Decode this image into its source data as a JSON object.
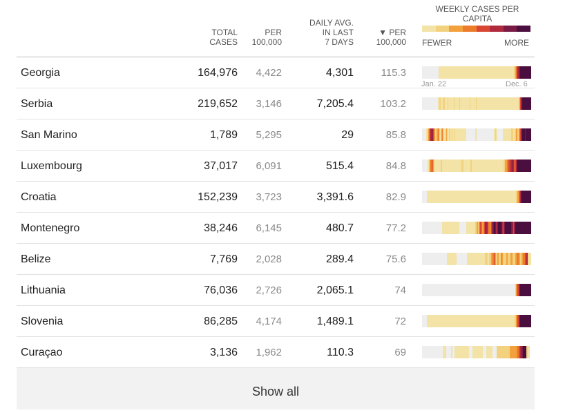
{
  "headers": {
    "total": [
      "TOTAL",
      "CASES"
    ],
    "per": [
      "PER",
      "100,000"
    ],
    "daily": [
      "DAILY AVG.",
      "IN LAST",
      "7 DAYS"
    ],
    "perd": [
      "▼ PER",
      "100,000"
    ],
    "weekly": [
      "WEEKLY CASES PER",
      "CAPITA"
    ],
    "fewer": "FEWER",
    "more": "MORE"
  },
  "legend_colors": [
    "#f3e3a6",
    "#f3d27f",
    "#f2a13d",
    "#ec7c2a",
    "#d94734",
    "#b02a3e",
    "#7a1a45",
    "#4a0f3f"
  ],
  "dates": {
    "start": "Jan. 22",
    "end": "Dec. 6"
  },
  "rows": [
    {
      "country": "Georgia",
      "total": "164,976",
      "per": "4,422",
      "daily": "4,301",
      "perd": "115.3",
      "levels": [
        0,
        0,
        0,
        0,
        0,
        0,
        0,
        0,
        0,
        0,
        0,
        0,
        0,
        0,
        0,
        0,
        0,
        0,
        0,
        0,
        0,
        1,
        1,
        1,
        1,
        1,
        1,
        1,
        1,
        1,
        1,
        1,
        1,
        1,
        1,
        1,
        1,
        1,
        1,
        1,
        1,
        1,
        1,
        1,
        1,
        1,
        1,
        1,
        1,
        1,
        1,
        1,
        1,
        1,
        1,
        1,
        1,
        1,
        1,
        1,
        1,
        1,
        1,
        1,
        1,
        1,
        1,
        1,
        1,
        1,
        1,
        1,
        1,
        1,
        1,
        1,
        1,
        1,
        1,
        1,
        1,
        1,
        1,
        1,
        1,
        1,
        1,
        1,
        1,
        1,
        1,
        1,
        1,
        1,
        1,
        1,
        1,
        1,
        1,
        1,
        1,
        1,
        1,
        1,
        1,
        1,
        1,
        1,
        1,
        1,
        1,
        1,
        1,
        1,
        1,
        1,
        1,
        1,
        2,
        2,
        3,
        4,
        5,
        6,
        7,
        7,
        8,
        8,
        8,
        8,
        8,
        8,
        8,
        8,
        8,
        8,
        8,
        8,
        8,
        8
      ]
    },
    {
      "country": "Serbia",
      "total": "219,652",
      "per": "3,146",
      "daily": "7,205.4",
      "perd": "103.2",
      "levels": [
        0,
        0,
        0,
        0,
        0,
        0,
        0,
        0,
        0,
        0,
        0,
        0,
        0,
        0,
        0,
        0,
        0,
        0,
        0,
        0,
        1,
        1,
        2,
        2,
        1,
        1,
        1,
        2,
        2,
        1,
        1,
        1,
        1,
        2,
        1,
        1,
        1,
        1,
        1,
        1,
        1,
        2,
        1,
        1,
        1,
        1,
        1,
        1,
        2,
        1,
        1,
        1,
        1,
        1,
        1,
        1,
        1,
        1,
        1,
        1,
        1,
        2,
        1,
        1,
        1,
        1,
        1,
        1,
        1,
        2,
        1,
        1,
        1,
        1,
        1,
        1,
        1,
        1,
        1,
        1,
        1,
        1,
        1,
        1,
        1,
        1,
        1,
        1,
        1,
        1,
        1,
        1,
        1,
        1,
        1,
        1,
        1,
        1,
        1,
        1,
        1,
        1,
        1,
        1,
        1,
        1,
        1,
        1,
        1,
        1,
        1,
        1,
        1,
        1,
        1,
        1,
        1,
        1,
        1,
        1,
        1,
        1,
        1,
        1,
        2,
        3,
        5,
        6,
        7,
        8,
        8,
        8,
        8,
        8,
        8,
        8,
        8,
        8,
        8,
        8
      ]
    },
    {
      "country": "San Marino",
      "total": "1,789",
      "per": "5,295",
      "daily": "29",
      "perd": "85.8",
      "levels": [
        0,
        0,
        0,
        0,
        0,
        1,
        1,
        2,
        3,
        4,
        5,
        6,
        7,
        6,
        5,
        4,
        3,
        2,
        2,
        3,
        4,
        3,
        2,
        1,
        2,
        3,
        4,
        2,
        1,
        1,
        2,
        3,
        2,
        1,
        1,
        2,
        1,
        1,
        2,
        1,
        1,
        1,
        2,
        1,
        1,
        1,
        1,
        1,
        1,
        1,
        1,
        1,
        1,
        1,
        1,
        1,
        1,
        0,
        0,
        0,
        0,
        0,
        0,
        0,
        0,
        0,
        0,
        0,
        1,
        1,
        0,
        0,
        0,
        0,
        0,
        0,
        0,
        0,
        0,
        0,
        0,
        0,
        0,
        0,
        0,
        0,
        0,
        0,
        0,
        0,
        0,
        0,
        1,
        1,
        2,
        1,
        1,
        0,
        0,
        0,
        0,
        0,
        0,
        0,
        1,
        1,
        1,
        1,
        1,
        1,
        1,
        1,
        1,
        1,
        1,
        2,
        2,
        1,
        1,
        2,
        2,
        3,
        3,
        2,
        3,
        4,
        5,
        6,
        7,
        8,
        8,
        8,
        7,
        8,
        8,
        8,
        8,
        8,
        8,
        8
      ]
    },
    {
      "country": "Luxembourg",
      "total": "37,017",
      "per": "6,091",
      "daily": "515.4",
      "perd": "84.8",
      "levels": [
        0,
        0,
        0,
        0,
        0,
        0,
        0,
        1,
        1,
        2,
        3,
        4,
        5,
        4,
        3,
        2,
        1,
        1,
        1,
        1,
        1,
        1,
        1,
        1,
        2,
        2,
        1,
        1,
        1,
        1,
        1,
        1,
        1,
        1,
        1,
        1,
        1,
        1,
        1,
        1,
        1,
        1,
        1,
        1,
        1,
        1,
        1,
        1,
        1,
        1,
        1,
        2,
        2,
        1,
        1,
        1,
        1,
        1,
        1,
        1,
        1,
        1,
        2,
        2,
        1,
        1,
        1,
        1,
        1,
        1,
        1,
        1,
        1,
        1,
        1,
        1,
        1,
        1,
        1,
        1,
        1,
        1,
        1,
        1,
        1,
        1,
        1,
        1,
        1,
        1,
        1,
        1,
        1,
        1,
        1,
        1,
        1,
        1,
        1,
        1,
        1,
        1,
        1,
        1,
        1,
        2,
        2,
        3,
        3,
        4,
        4,
        5,
        5,
        5,
        6,
        6,
        7,
        6,
        5,
        4,
        5,
        6,
        7,
        8,
        8,
        8,
        8,
        8,
        8,
        8,
        8,
        8,
        8,
        8,
        8,
        8,
        8,
        8,
        8,
        8
      ]
    },
    {
      "country": "Croatia",
      "total": "152,239",
      "per": "3,723",
      "daily": "3,391.6",
      "perd": "82.9",
      "levels": [
        0,
        0,
        0,
        0,
        0,
        0,
        1,
        1,
        1,
        1,
        1,
        1,
        1,
        1,
        1,
        1,
        1,
        1,
        1,
        1,
        1,
        1,
        1,
        1,
        1,
        1,
        1,
        1,
        1,
        1,
        1,
        1,
        1,
        1,
        1,
        1,
        1,
        1,
        1,
        1,
        1,
        1,
        1,
        1,
        1,
        1,
        1,
        1,
        1,
        1,
        1,
        1,
        1,
        1,
        1,
        1,
        1,
        1,
        1,
        1,
        1,
        1,
        1,
        1,
        1,
        1,
        1,
        1,
        1,
        1,
        1,
        1,
        1,
        1,
        1,
        1,
        1,
        1,
        1,
        1,
        1,
        1,
        1,
        1,
        1,
        1,
        1,
        1,
        1,
        1,
        1,
        1,
        1,
        1,
        1,
        1,
        1,
        1,
        1,
        1,
        1,
        1,
        1,
        1,
        1,
        1,
        1,
        1,
        1,
        1,
        1,
        1,
        1,
        1,
        1,
        1,
        1,
        1,
        1,
        1,
        1,
        2,
        2,
        3,
        4,
        5,
        6,
        7,
        8,
        8,
        8,
        8,
        8,
        8,
        8,
        8,
        8,
        8,
        8,
        8
      ]
    },
    {
      "country": "Montenegro",
      "total": "38,246",
      "per": "6,145",
      "daily": "480.7",
      "perd": "77.2",
      "levels": [
        0,
        0,
        0,
        0,
        0,
        0,
        0,
        0,
        0,
        0,
        0,
        0,
        0,
        0,
        0,
        0,
        0,
        0,
        0,
        0,
        0,
        0,
        0,
        0,
        0,
        0,
        1,
        1,
        1,
        1,
        1,
        1,
        1,
        1,
        1,
        1,
        1,
        1,
        1,
        1,
        1,
        1,
        1,
        1,
        1,
        1,
        1,
        1,
        0,
        0,
        0,
        0,
        0,
        0,
        0,
        0,
        0,
        1,
        1,
        1,
        1,
        1,
        1,
        1,
        1,
        1,
        1,
        1,
        2,
        2,
        3,
        3,
        2,
        3,
        4,
        5,
        4,
        3,
        3,
        4,
        5,
        6,
        7,
        6,
        5,
        4,
        4,
        3,
        4,
        5,
        6,
        7,
        8,
        8,
        7,
        6,
        6,
        7,
        8,
        8,
        8,
        8,
        7,
        6,
        5,
        6,
        7,
        8,
        8,
        8,
        8,
        8,
        8,
        8,
        8,
        7,
        6,
        5,
        6,
        7,
        8,
        8,
        8,
        8,
        8,
        8,
        8,
        8,
        8,
        8,
        8,
        8,
        8,
        8,
        8,
        8,
        8,
        8,
        8,
        8
      ]
    },
    {
      "country": "Belize",
      "total": "7,769",
      "per": "2,028",
      "daily": "289.4",
      "perd": "75.6",
      "levels": [
        0,
        0,
        0,
        0,
        0,
        0,
        0,
        0,
        0,
        0,
        0,
        0,
        0,
        0,
        0,
        0,
        0,
        0,
        0,
        0,
        0,
        0,
        0,
        0,
        0,
        0,
        0,
        0,
        0,
        0,
        0,
        0,
        1,
        1,
        1,
        1,
        1,
        1,
        1,
        1,
        1,
        1,
        1,
        1,
        0,
        0,
        0,
        0,
        0,
        0,
        0,
        0,
        0,
        0,
        0,
        0,
        0,
        0,
        1,
        1,
        1,
        1,
        1,
        1,
        1,
        1,
        1,
        1,
        1,
        1,
        1,
        1,
        1,
        1,
        1,
        1,
        1,
        1,
        1,
        1,
        1,
        2,
        2,
        2,
        1,
        1,
        2,
        2,
        2,
        3,
        3,
        4,
        5,
        4,
        3,
        2,
        2,
        3,
        3,
        2,
        2,
        3,
        4,
        3,
        2,
        2,
        2,
        2,
        3,
        3,
        2,
        2,
        2,
        2,
        3,
        3,
        2,
        2,
        2,
        2,
        3,
        3,
        4,
        4,
        3,
        3,
        2,
        2,
        3,
        3,
        4,
        4,
        5,
        5,
        6,
        6,
        2,
        1,
        1,
        1
      ]
    },
    {
      "country": "Lithuania",
      "total": "76,036",
      "per": "2,726",
      "daily": "2,065.1",
      "perd": "74",
      "levels": [
        0,
        0,
        0,
        0,
        0,
        0,
        0,
        0,
        0,
        0,
        0,
        0,
        0,
        0,
        0,
        0,
        0,
        0,
        0,
        0,
        0,
        0,
        0,
        0,
        0,
        0,
        0,
        0,
        0,
        0,
        0,
        0,
        0,
        0,
        0,
        0,
        0,
        0,
        0,
        0,
        0,
        0,
        0,
        0,
        0,
        0,
        0,
        0,
        0,
        0,
        0,
        0,
        0,
        0,
        0,
        0,
        0,
        0,
        0,
        0,
        0,
        0,
        0,
        0,
        0,
        0,
        0,
        0,
        0,
        0,
        0,
        0,
        0,
        0,
        0,
        0,
        0,
        0,
        0,
        0,
        0,
        0,
        0,
        0,
        0,
        0,
        0,
        0,
        0,
        0,
        0,
        0,
        0,
        0,
        0,
        0,
        0,
        0,
        0,
        0,
        0,
        0,
        0,
        0,
        0,
        0,
        0,
        0,
        0,
        0,
        0,
        0,
        0,
        0,
        0,
        0,
        0,
        0,
        0,
        0,
        2,
        3,
        4,
        5,
        6,
        7,
        8,
        8,
        8,
        8,
        8,
        8,
        8,
        8,
        8,
        8,
        8,
        8,
        8,
        8
      ]
    },
    {
      "country": "Slovenia",
      "total": "86,285",
      "per": "4,174",
      "daily": "1,489.1",
      "perd": "72",
      "levels": [
        0,
        0,
        0,
        0,
        0,
        0,
        1,
        1,
        1,
        1,
        1,
        1,
        1,
        1,
        1,
        1,
        1,
        1,
        1,
        1,
        1,
        1,
        1,
        1,
        1,
        1,
        1,
        1,
        1,
        1,
        1,
        1,
        1,
        1,
        1,
        1,
        1,
        1,
        1,
        1,
        1,
        1,
        1,
        1,
        1,
        1,
        1,
        1,
        1,
        1,
        1,
        1,
        1,
        1,
        1,
        1,
        1,
        1,
        1,
        1,
        1,
        1,
        1,
        1,
        1,
        1,
        1,
        1,
        1,
        1,
        1,
        1,
        1,
        1,
        1,
        1,
        1,
        1,
        1,
        1,
        1,
        1,
        1,
        1,
        1,
        1,
        1,
        1,
        1,
        1,
        1,
        1,
        1,
        1,
        1,
        1,
        1,
        1,
        1,
        1,
        1,
        1,
        1,
        1,
        1,
        1,
        1,
        1,
        1,
        1,
        1,
        1,
        1,
        1,
        1,
        1,
        1,
        1,
        1,
        2,
        2,
        3,
        4,
        5,
        6,
        7,
        8,
        8,
        8,
        8,
        8,
        8,
        8,
        8,
        8,
        8,
        8,
        8,
        8,
        8
      ]
    },
    {
      "country": "Curaçao",
      "total": "3,136",
      "per": "1,962",
      "daily": "110.3",
      "perd": "69",
      "levels": [
        0,
        0,
        0,
        0,
        0,
        0,
        0,
        0,
        0,
        0,
        0,
        0,
        0,
        0,
        0,
        0,
        0,
        0,
        0,
        0,
        0,
        0,
        0,
        0,
        0,
        0,
        0,
        1,
        1,
        1,
        1,
        0,
        0,
        0,
        0,
        0,
        0,
        1,
        1,
        0,
        0,
        0,
        1,
        1,
        1,
        1,
        1,
        1,
        1,
        1,
        1,
        1,
        1,
        1,
        1,
        1,
        1,
        1,
        1,
        1,
        0,
        0,
        0,
        0,
        0,
        1,
        1,
        1,
        1,
        1,
        1,
        1,
        1,
        1,
        1,
        1,
        1,
        1,
        0,
        0,
        0,
        0,
        0,
        1,
        1,
        1,
        1,
        1,
        1,
        1,
        1,
        0,
        0,
        0,
        0,
        0,
        2,
        2,
        2,
        2,
        2,
        2,
        2,
        2,
        2,
        2,
        2,
        2,
        2,
        2,
        2,
        2,
        2,
        3,
        3,
        3,
        3,
        3,
        3,
        3,
        3,
        3,
        4,
        4,
        5,
        5,
        6,
        6,
        7,
        7,
        8,
        8,
        8,
        8,
        2,
        2,
        1,
        1,
        1
      ]
    }
  ],
  "show_all": "Show all"
}
